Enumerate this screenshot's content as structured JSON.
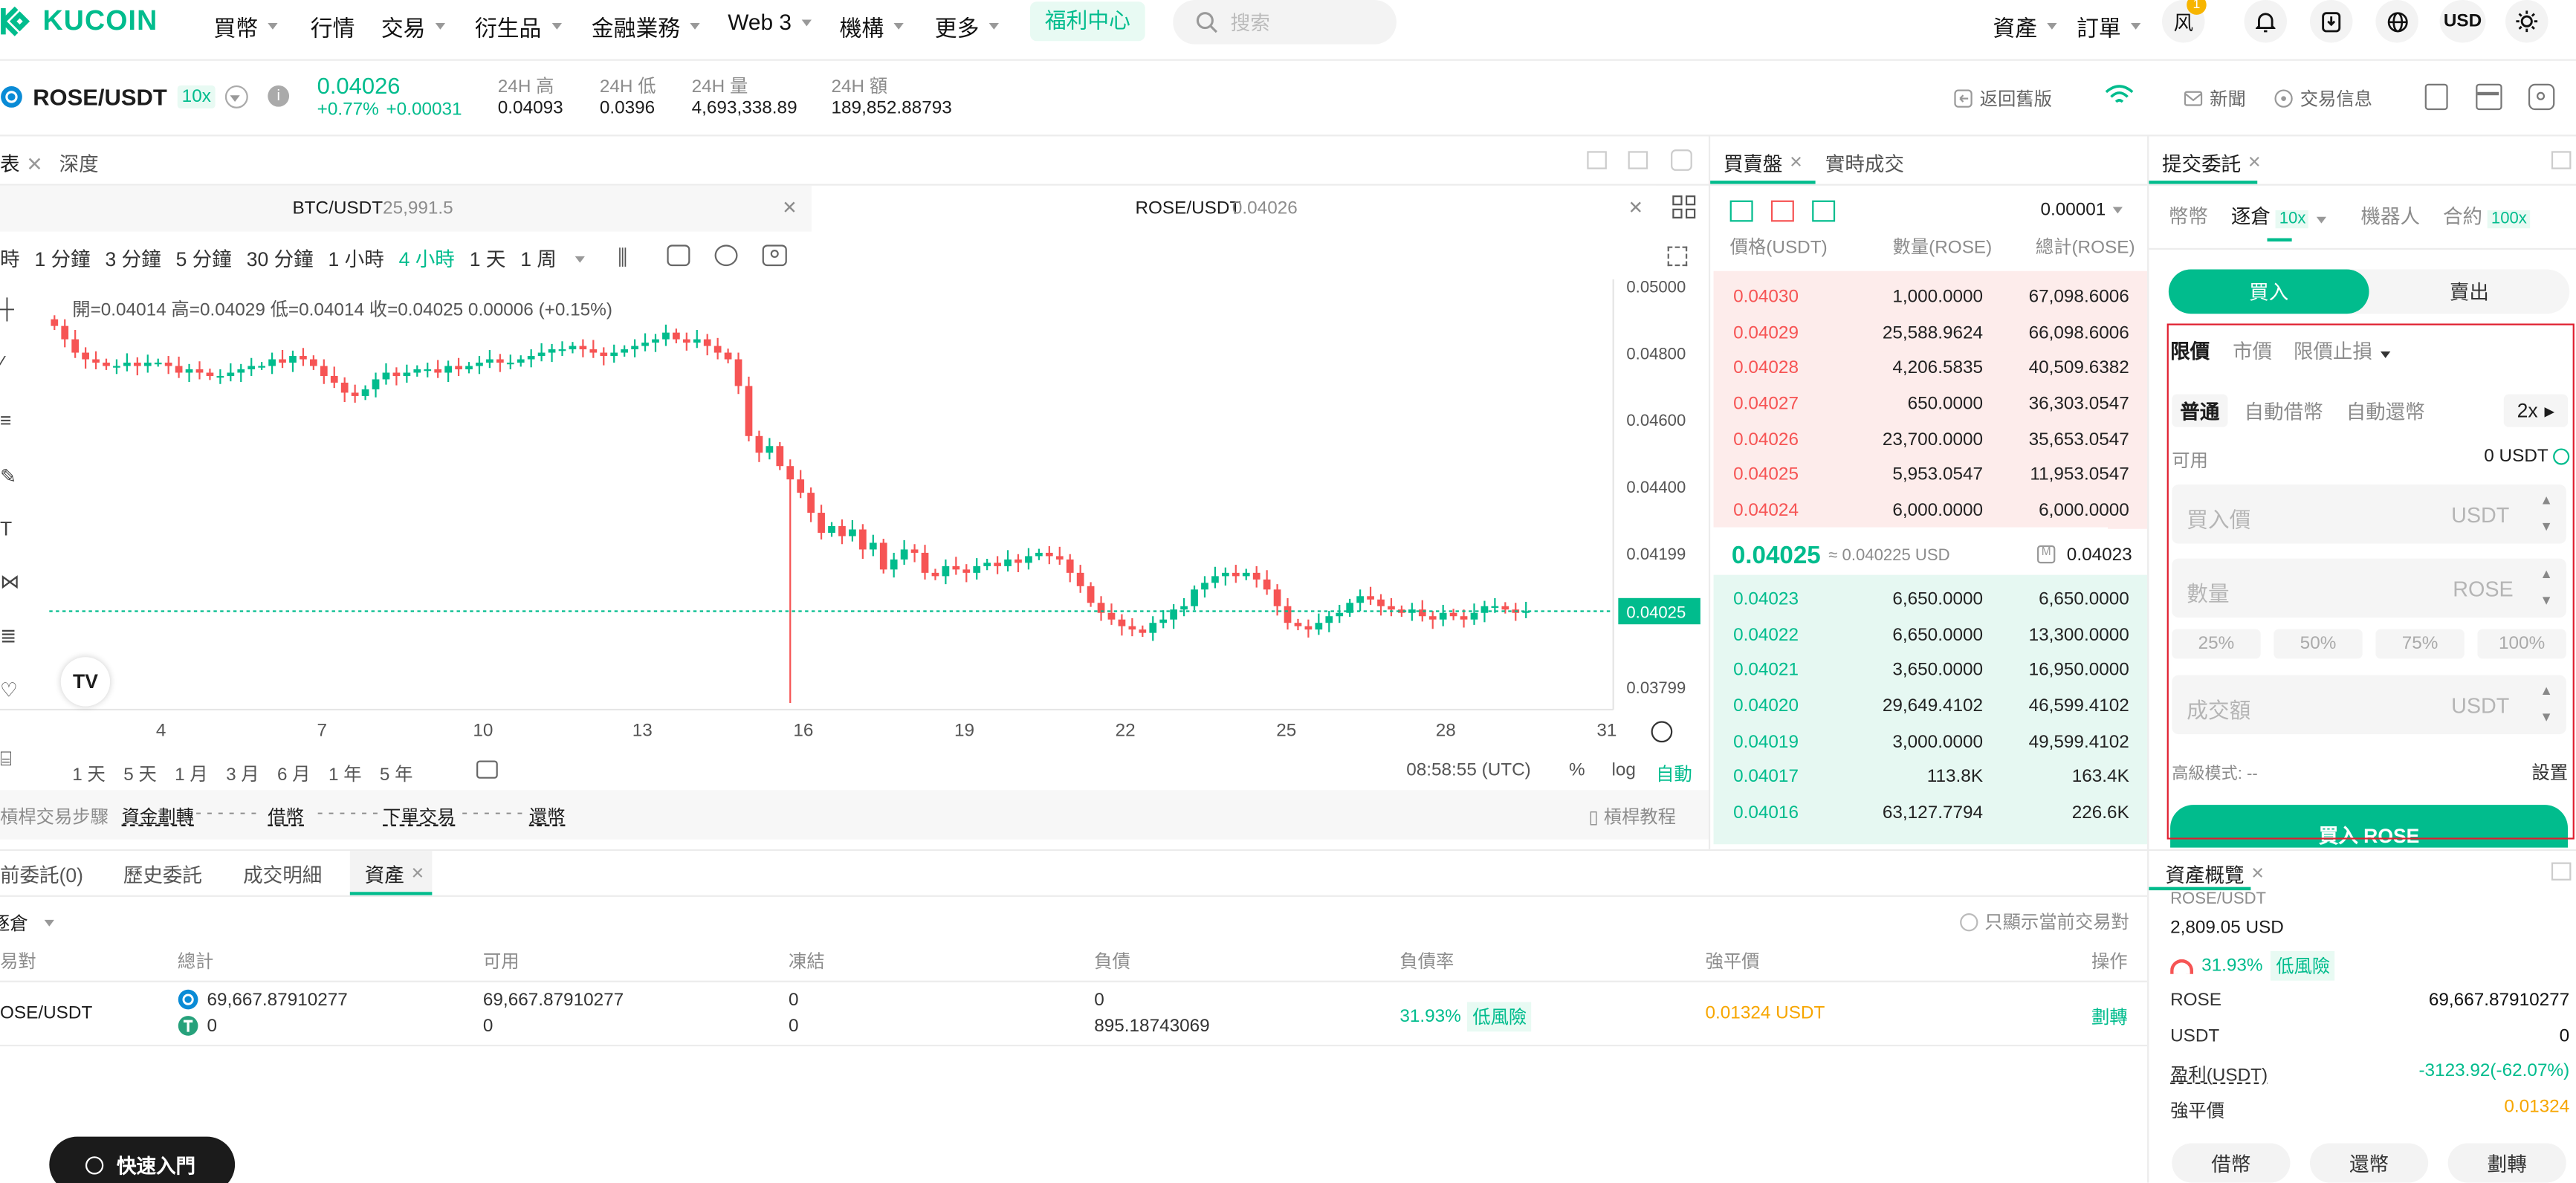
{
  "header": {
    "logo": "KUCOIN",
    "nav": [
      {
        "label": "買幣",
        "caret": true
      },
      {
        "label": "行情",
        "caret": false
      },
      {
        "label": "交易",
        "caret": true
      },
      {
        "label": "衍生品",
        "caret": true
      },
      {
        "label": "金融業務",
        "caret": true
      },
      {
        "label": "Web 3",
        "caret": true
      },
      {
        "label": "機構",
        "caret": true
      },
      {
        "label": "更多",
        "caret": true
      }
    ],
    "promo": "福利中心",
    "search_placeholder": "搜索",
    "assets": "資產",
    "orders": "訂單",
    "avatar": "风",
    "badge": "1",
    "currency": "USD"
  },
  "ticker": {
    "pair": "ROSE/USDT",
    "leverage": "10x",
    "price": "0.04026",
    "change_pct": "+0.77%",
    "change_abs": "+0.00031",
    "stats": [
      {
        "label": "24H 高",
        "value": "0.04093"
      },
      {
        "label": "24H 低",
        "value": "0.0396"
      },
      {
        "label": "24H 量",
        "value": "4,693,338.89"
      },
      {
        "label": "24H 額",
        "value": "189,852.88793"
      }
    ],
    "links": {
      "old": "返回舊版",
      "news": "新聞",
      "info": "交易信息"
    }
  },
  "chart_panel": {
    "tab_chart": "表",
    "tab_depth": "深度",
    "pair_tabs": [
      {
        "name": "BTC/USDT",
        "price": "25,991.5"
      },
      {
        "name": "ROSE/USDT",
        "price": "0.04026"
      }
    ],
    "intervals": [
      "時",
      "1 分鐘",
      "3 分鐘",
      "5 分鐘",
      "30 分鐘",
      "1 小時",
      "4 小時",
      "1 天",
      "1 周"
    ],
    "active_interval": "4 小時",
    "ohlc": "開=0.04014  高=0.04029  低=0.04014  收=0.04025  0.00006 (+0.15%)",
    "ranges": [
      "1 天",
      "5 天",
      "1 月",
      "3 月",
      "6 月",
      "1 年",
      "5 年"
    ],
    "time": "08:58:55 (UTC)",
    "pct": "%",
    "log": "log",
    "auto": "自動"
  },
  "chart_data": {
    "type": "candlestick",
    "ylim": [
      0.0373,
      0.0502
    ],
    "y_ticks": [
      "0.05000",
      "0.04800",
      "0.04600",
      "0.04400",
      "0.04199",
      "0.03799"
    ],
    "x_ticks": [
      "4",
      "7",
      "10",
      "13",
      "16",
      "19",
      "22",
      "25",
      "28",
      "31"
    ],
    "last_price": "0.04025",
    "closes": [
      0.0488,
      0.0484,
      0.048,
      0.0478,
      0.0477,
      0.0476,
      0.0476,
      0.0477,
      0.0476,
      0.0477,
      0.0477,
      0.0476,
      0.0474,
      0.0475,
      0.0474,
      0.0473,
      0.0473,
      0.0474,
      0.0475,
      0.0476,
      0.0476,
      0.0478,
      0.0477,
      0.0479,
      0.0478,
      0.0476,
      0.0473,
      0.0471,
      0.0468,
      0.0467,
      0.0469,
      0.0472,
      0.0474,
      0.0473,
      0.0474,
      0.0475,
      0.0475,
      0.0474,
      0.0476,
      0.0475,
      0.0476,
      0.0477,
      0.0478,
      0.0477,
      0.0477,
      0.0478,
      0.0479,
      0.048,
      0.0481,
      0.0481,
      0.0482,
      0.0481,
      0.048,
      0.0479,
      0.048,
      0.0481,
      0.0482,
      0.0483,
      0.0484,
      0.0486,
      0.0484,
      0.0483,
      0.0484,
      0.0482,
      0.048,
      0.0478,
      0.047,
      0.0455,
      0.045,
      0.0452,
      0.0446,
      0.0442,
      0.0438,
      0.0432,
      0.0426,
      0.0428,
      0.0425,
      0.0427,
      0.0421,
      0.0423,
      0.0415,
      0.0418,
      0.0421,
      0.042,
      0.0414,
      0.0413,
      0.0416,
      0.0415,
      0.0414,
      0.0416,
      0.0417,
      0.0416,
      0.0418,
      0.0417,
      0.0419,
      0.042,
      0.0419,
      0.0418,
      0.0414,
      0.041,
      0.0405,
      0.0402,
      0.04,
      0.0398,
      0.0397,
      0.0396,
      0.0399,
      0.04,
      0.0403,
      0.0404,
      0.0409,
      0.0411,
      0.0413,
      0.0414,
      0.0413,
      0.0414,
      0.0412,
      0.0409,
      0.0404,
      0.0399,
      0.0398,
      0.0397,
      0.0399,
      0.0401,
      0.0402,
      0.0405,
      0.0407,
      0.0406,
      0.0404,
      0.0403,
      0.0402,
      0.0403,
      0.0401,
      0.04,
      0.0402,
      0.0401,
      0.04,
      0.0402,
      0.0404,
      0.0404,
      0.0403,
      0.0402,
      0.04025
    ],
    "support_bar": {
      "steps": "槓桿交易步驟",
      "transfer": "資金劃轉",
      "borrow": "借幣",
      "order": "下單交易",
      "repay": "還幣",
      "tutorial": "槓桿教程"
    }
  },
  "orderbook": {
    "tab": "買賣盤",
    "tab2": "實時成交",
    "precision": "0.00001",
    "headers": [
      "價格(USDT)",
      "數量(ROSE)",
      "總計(ROSE)"
    ],
    "asks": [
      [
        "0.04030",
        "1,000.0000",
        "67,098.6006"
      ],
      [
        "0.04029",
        "25,588.9624",
        "66,098.6006"
      ],
      [
        "0.04028",
        "4,206.5835",
        "40,509.6382"
      ],
      [
        "0.04027",
        "650.0000",
        "36,303.0547"
      ],
      [
        "0.04026",
        "23,700.0000",
        "35,653.0547"
      ],
      [
        "0.04025",
        "5,953.0547",
        "11,953.0547"
      ],
      [
        "0.04024",
        "6,000.0000",
        "6,000.0000"
      ]
    ],
    "ask_depth": [
      1.0,
      0.98,
      0.6,
      0.54,
      0.53,
      0.18,
      0.09
    ],
    "mid": "0.04025",
    "mid_usd": "≈ 0.040225 USD",
    "mid_index": "0.04023",
    "bids": [
      [
        "0.04023",
        "6,650.0000",
        "6,650.0000"
      ],
      [
        "0.04022",
        "6,650.0000",
        "13,300.0000"
      ],
      [
        "0.04021",
        "3,650.0000",
        "16,950.0000"
      ],
      [
        "0.04020",
        "29,649.4102",
        "46,599.4102"
      ],
      [
        "0.04019",
        "3,000.0000",
        "49,599.4102"
      ],
      [
        "0.04017",
        "113.8K",
        "163.4K"
      ],
      [
        "0.04016",
        "63,127.7794",
        "226.6K"
      ]
    ],
    "bid_depth": [
      0.03,
      0.06,
      0.07,
      0.21,
      0.22,
      0.72,
      1.0
    ]
  },
  "order_form": {
    "title": "提交委託",
    "modes": [
      "幣幣",
      "逐倉",
      "機器人",
      "合約"
    ],
    "lev": "10x",
    "lev2": "100x",
    "buy": "買入",
    "sell": "賣出",
    "types": [
      "限價",
      "市價",
      "限價止損"
    ],
    "sub": [
      "普通",
      "自動借幣",
      "自動還幣"
    ],
    "mult": "2x",
    "avail_label": "可用",
    "avail": "0 USDT",
    "price_ph": "買入價",
    "qty_ph": "數量",
    "total_ph": "成交額",
    "usdt": "USDT",
    "rose": "ROSE",
    "pcts": [
      "25%",
      "50%",
      "75%",
      "100%"
    ],
    "adv": "高級模式: --",
    "settings": "設置",
    "submit": "買入 ROSE"
  },
  "bottom": {
    "tabs": [
      "前委託(0)",
      "歷史委託",
      "成交明細",
      "資產"
    ],
    "filter": "逐倉",
    "only_current": "只顯示當前交易對",
    "cols": [
      "易對",
      "總計",
      "可用",
      "凍結",
      "負債",
      "負債率",
      "強平價",
      "操作"
    ],
    "row": {
      "pair": "OSE/USDT",
      "total1": "69,667.87910277",
      "total2": "0",
      "avail1": "69,667.87910277",
      "avail2": "0",
      "frozen1": "0",
      "frozen2": "0",
      "debt1": "0",
      "debt2": "895.18743069",
      "ratio": "31.93%",
      "risk": "低風險",
      "liq": "0.01324 USDT",
      "action": "劃轉"
    },
    "quick": "快速入門"
  },
  "assets_panel": {
    "title": "資產概覽",
    "pair": "ROSE/USDT",
    "value": "2,809.05 USD",
    "ratio": "31.93%",
    "risk": "低風險",
    "rows": [
      {
        "k": "ROSE",
        "v": "69,667.87910277"
      },
      {
        "k": "USDT",
        "v": "0"
      },
      {
        "k": "盈利(USDT)",
        "v": "-3123.92(-62.07%)"
      },
      {
        "k": "強平價",
        "v": "0.01324"
      }
    ],
    "buttons": [
      "借幣",
      "還幣",
      "劃轉"
    ]
  }
}
